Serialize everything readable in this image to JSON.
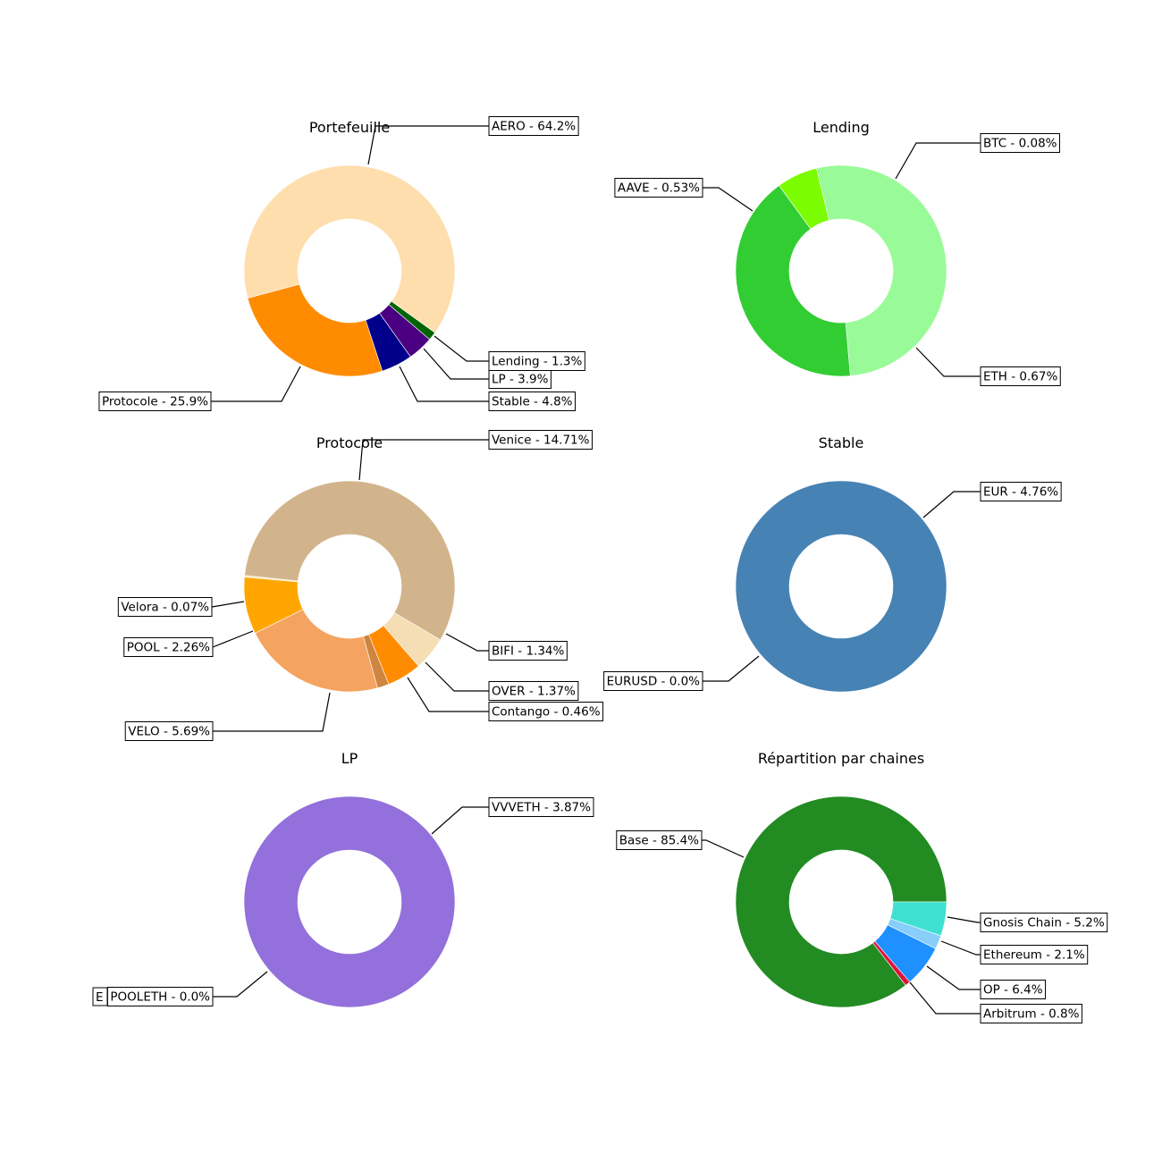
{
  "chart_data": [
    {
      "type": "pie",
      "donut": true,
      "title": "Portefeuille",
      "slices": [
        {
          "label": "Protocole - 25.9%",
          "value": 25.9,
          "color": "#ff8c00"
        },
        {
          "label": "Stable - 4.8%",
          "value": 4.8,
          "color": "#00008b"
        },
        {
          "label": "LP - 3.9%",
          "value": 3.9,
          "color": "#4b0082"
        },
        {
          "label": "Lending - 1.3%",
          "value": 1.3,
          "color": "#006400"
        },
        {
          "label": "AERO - 64.2%",
          "value": 64.2,
          "color": "#ffdead"
        }
      ]
    },
    {
      "type": "pie",
      "donut": true,
      "title": "Lending",
      "slices": [
        {
          "label": "AAVE - 0.53%",
          "value": 0.53,
          "color": "#32cd32"
        },
        {
          "label": "ETH - 0.67%",
          "value": 0.67,
          "color": "#98fb98"
        },
        {
          "label": "BTC - 0.08%",
          "value": 0.08,
          "color": "#7cfc00"
        }
      ]
    },
    {
      "type": "pie",
      "donut": true,
      "title": "Protocole",
      "slices": [
        {
          "label": "Velora - 0.07%",
          "value": 0.07,
          "color": "#ffe4b5"
        },
        {
          "label": "POOL - 2.26%",
          "value": 2.26,
          "color": "#ffa500"
        },
        {
          "label": "VELO - 5.69%",
          "value": 5.69,
          "color": "#f4a460"
        },
        {
          "label": "Contango - 0.46%",
          "value": 0.46,
          "color": "#cd853f"
        },
        {
          "label": "OVER - 1.37%",
          "value": 1.37,
          "color": "#ff8c00"
        },
        {
          "label": "BIFI - 1.34%",
          "value": 1.34,
          "color": "#f5deb3"
        },
        {
          "label": "Venice - 14.71%",
          "value": 14.71,
          "color": "#d2b48c"
        }
      ]
    },
    {
      "type": "pie",
      "donut": true,
      "title": "Stable",
      "slices": [
        {
          "label": "EURUSD - 0.0%",
          "value": 0.0,
          "color": "#4682b4"
        },
        {
          "label": "EUR - 4.76%",
          "value": 4.76,
          "color": "#4682b4"
        }
      ]
    },
    {
      "type": "pie",
      "donut": true,
      "title": "LP",
      "slices": [
        {
          "label": "POOLETH - 0.0%",
          "value": 0.0,
          "color": "#9370db"
        },
        {
          "label": "VVVETH - 3.87%",
          "value": 3.87,
          "color": "#9370db"
        }
      ],
      "overlapped_label_fragment": "E"
    },
    {
      "type": "pie",
      "donut": true,
      "title": "Répartition par chaines",
      "slices": [
        {
          "label": "Base - 85.4%",
          "value": 85.4,
          "color": "#228b22"
        },
        {
          "label": "Arbitrum - 0.8%",
          "value": 0.8,
          "color": "#dc143c"
        },
        {
          "label": "OP - 6.4%",
          "value": 6.4,
          "color": "#1e90ff"
        },
        {
          "label": "Ethereum - 2.1%",
          "value": 2.1,
          "color": "#87cefa"
        },
        {
          "label": "Gnosis Chain - 5.2%",
          "value": 5.2,
          "color": "#40e0d0"
        }
      ]
    }
  ]
}
